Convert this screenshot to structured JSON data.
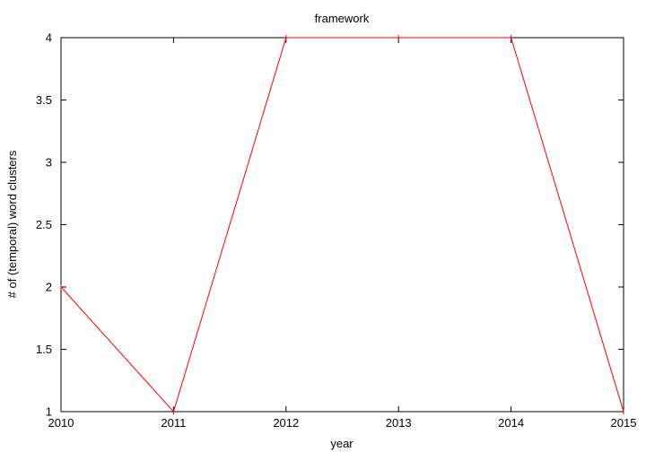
{
  "chart_data": {
    "type": "line",
    "title": "framework",
    "xlabel": "year",
    "ylabel": "# of (temporal) word clusters",
    "xlim": [
      2010,
      2015
    ],
    "ylim": [
      1,
      4
    ],
    "xticks": [
      2010,
      2011,
      2012,
      2013,
      2014,
      2015
    ],
    "yticks": [
      1,
      1.5,
      2,
      2.5,
      3,
      3.5,
      4
    ],
    "xtick_labels": [
      "2010",
      "2011",
      "2012",
      "2013",
      "2014",
      "2015"
    ],
    "ytick_labels": [
      "1",
      "1.5",
      "2",
      "2.5",
      "3",
      "3.5",
      "4"
    ],
    "grid": false,
    "series": [
      {
        "color": "#ff0000",
        "points": [
          {
            "x": 2010,
            "y": 2
          },
          {
            "x": 2011,
            "y": 1
          },
          {
            "x": 2012,
            "y": 4
          },
          {
            "x": 2013,
            "y": 4
          },
          {
            "x": 2014,
            "y": 4
          },
          {
            "x": 2015,
            "y": 1
          }
        ]
      }
    ]
  }
}
